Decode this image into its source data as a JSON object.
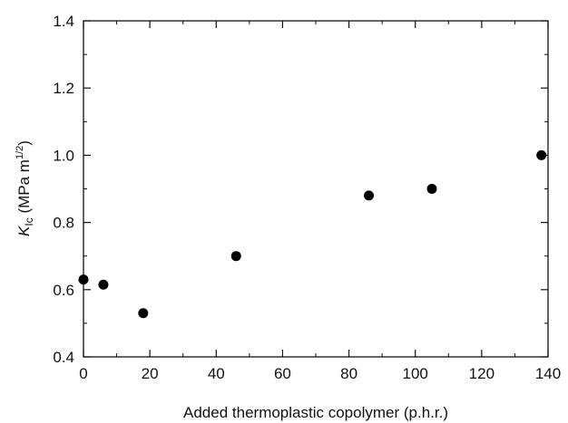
{
  "chart_data": {
    "type": "scatter",
    "title": "",
    "xlabel": "Added thermoplastic copolymer (p.h.r.)",
    "ylabel": {
      "symbol": "K",
      "subscript": "Ic",
      "unit_prefix": " (MPa m",
      "unit_exponent": "1/2",
      "unit_suffix": ")"
    },
    "xlim": [
      0,
      140
    ],
    "ylim": [
      0.4,
      1.4
    ],
    "x_ticks": [
      0,
      20,
      40,
      60,
      80,
      100,
      120,
      140
    ],
    "y_ticks": [
      0.4,
      0.6,
      0.8,
      1.0,
      1.2,
      1.4
    ],
    "x_tick_labels": [
      "0",
      "20",
      "40",
      "60",
      "80",
      "100",
      "120",
      "140"
    ],
    "y_tick_labels": [
      "0.4",
      "0.6",
      "0.8",
      "1.0",
      "1.2",
      "1.4"
    ],
    "grid": false,
    "legend": "none",
    "marker_color": "#000000",
    "series": [
      {
        "x": [
          0,
          6,
          18,
          46,
          86,
          105,
          138
        ],
        "y": [
          0.63,
          0.615,
          0.53,
          0.7,
          0.88,
          0.9,
          1.0
        ]
      }
    ]
  }
}
